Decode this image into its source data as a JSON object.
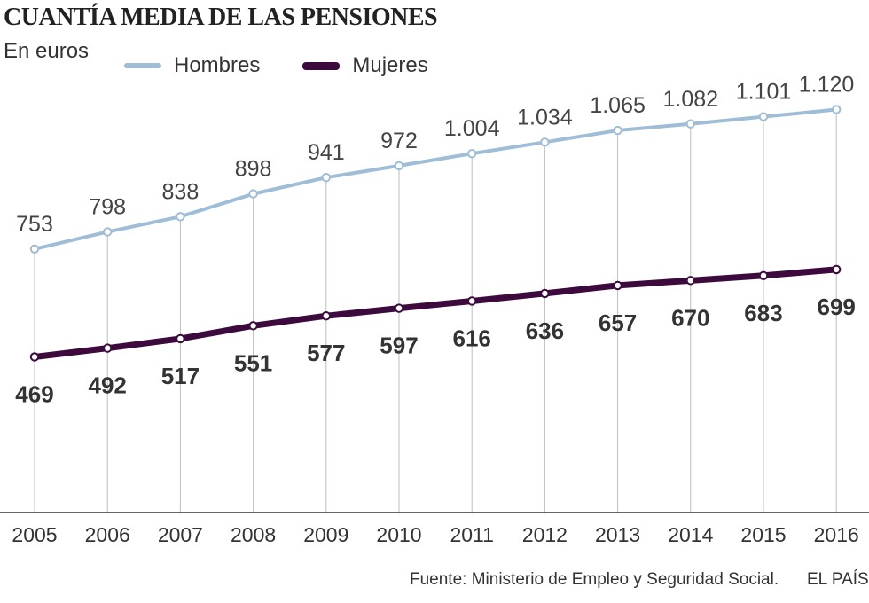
{
  "header": {
    "title": "CUANTÍA MEDIA DE LAS PENSIONES",
    "subtitle": "En euros"
  },
  "legend": {
    "items": [
      {
        "label": "Hombres",
        "color": "#9fbdd6"
      },
      {
        "label": "Mujeres",
        "color": "#3d0a3d"
      }
    ]
  },
  "footer": {
    "source": "Fuente: Ministerio de Empleo y Seguridad Social.",
    "brand": "EL PAÍS"
  },
  "chart_data": {
    "type": "line",
    "title": "CUANTÍA MEDIA DE LAS PENSIONES",
    "subtitle": "En euros",
    "xlabel": "",
    "ylabel": "",
    "x": [
      "2005",
      "2006",
      "2007",
      "2008",
      "2009",
      "2010",
      "2011",
      "2012",
      "2013",
      "2014",
      "2015",
      "2016"
    ],
    "ylim": [
      0,
      1250
    ],
    "grid": "vertical",
    "legend_position": "top",
    "series": [
      {
        "name": "Hombres",
        "color": "#9fbdd6",
        "values": [
          753,
          798,
          838,
          898,
          941,
          972,
          1004,
          1034,
          1065,
          1082,
          1101,
          1120
        ],
        "labels": [
          "753",
          "798",
          "838",
          "898",
          "941",
          "972",
          "1.004",
          "1.034",
          "1.065",
          "1.082",
          "1.101",
          "1.120"
        ]
      },
      {
        "name": "Mujeres",
        "color": "#3d0a3d",
        "values": [
          469,
          492,
          517,
          551,
          577,
          597,
          616,
          636,
          657,
          670,
          683,
          699
        ],
        "labels": [
          "469",
          "492",
          "517",
          "551",
          "577",
          "597",
          "616",
          "636",
          "657",
          "670",
          "683",
          "699"
        ]
      }
    ]
  }
}
